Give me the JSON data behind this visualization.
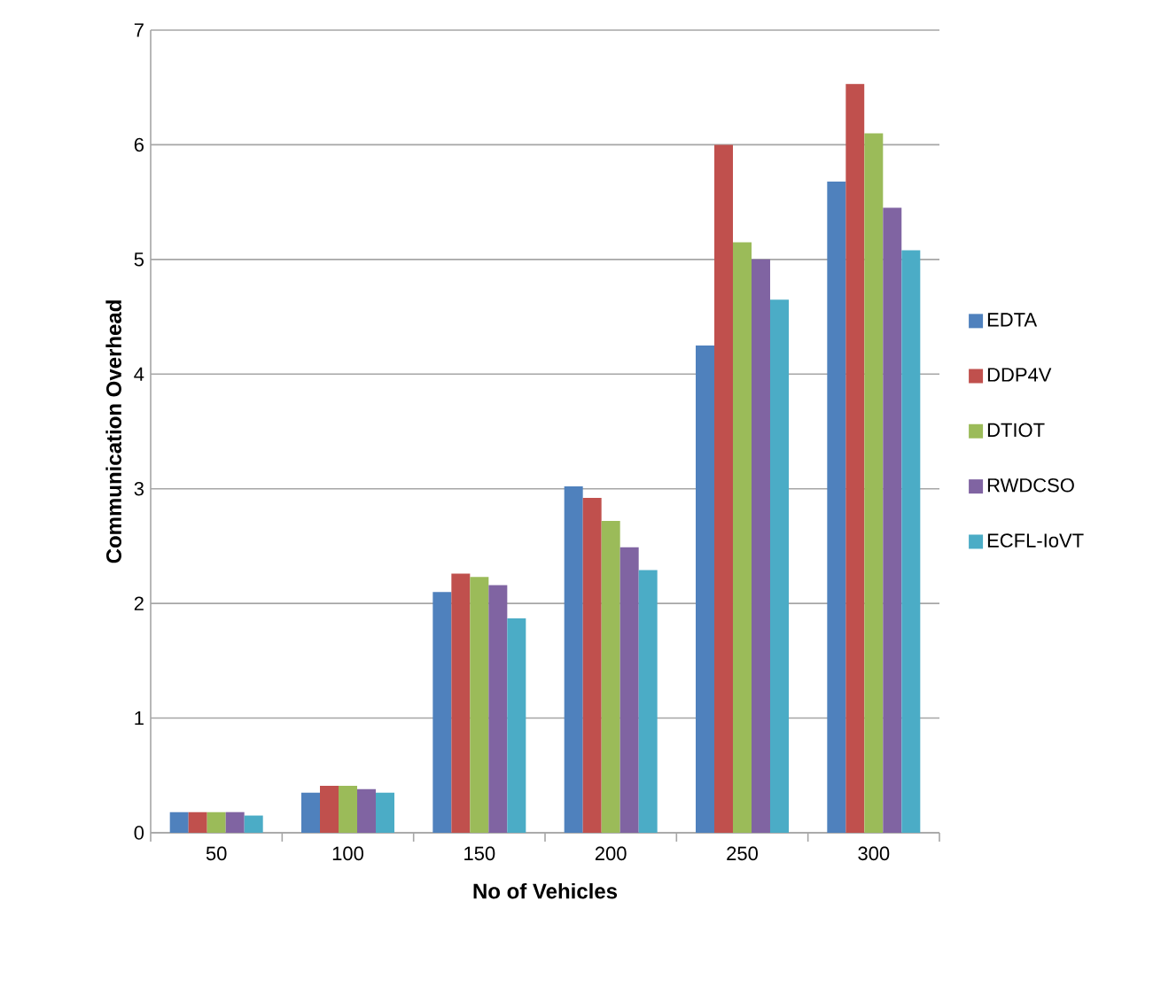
{
  "chart_data": {
    "type": "bar",
    "xlabel": "No of Vehicles",
    "ylabel": "Communication  Overhead",
    "categories": [
      "50",
      "100",
      "150",
      "200",
      "250",
      "300"
    ],
    "series": [
      {
        "name": "EDTA",
        "color": "#4f81bd",
        "values": [
          0.18,
          0.35,
          2.1,
          3.02,
          4.25,
          5.68
        ]
      },
      {
        "name": "DDP4V",
        "color": "#c0504d",
        "values": [
          0.18,
          0.41,
          2.26,
          2.92,
          6.0,
          6.53
        ]
      },
      {
        "name": "DTIOT",
        "color": "#9bbb59",
        "values": [
          0.18,
          0.41,
          2.23,
          2.72,
          5.15,
          6.1
        ]
      },
      {
        "name": "RWDCSO",
        "color": "#8064a2",
        "values": [
          0.18,
          0.38,
          2.16,
          2.49,
          5.0,
          5.45
        ]
      },
      {
        "name": "ECFL-IoVT",
        "color": "#4bacc6",
        "values": [
          0.15,
          0.35,
          1.87,
          2.29,
          4.65,
          5.08
        ]
      }
    ],
    "ylim": [
      0,
      7
    ],
    "yticks": [
      0,
      1,
      2,
      3,
      4,
      5,
      6,
      7
    ],
    "grid": "y",
    "legend": "right"
  }
}
